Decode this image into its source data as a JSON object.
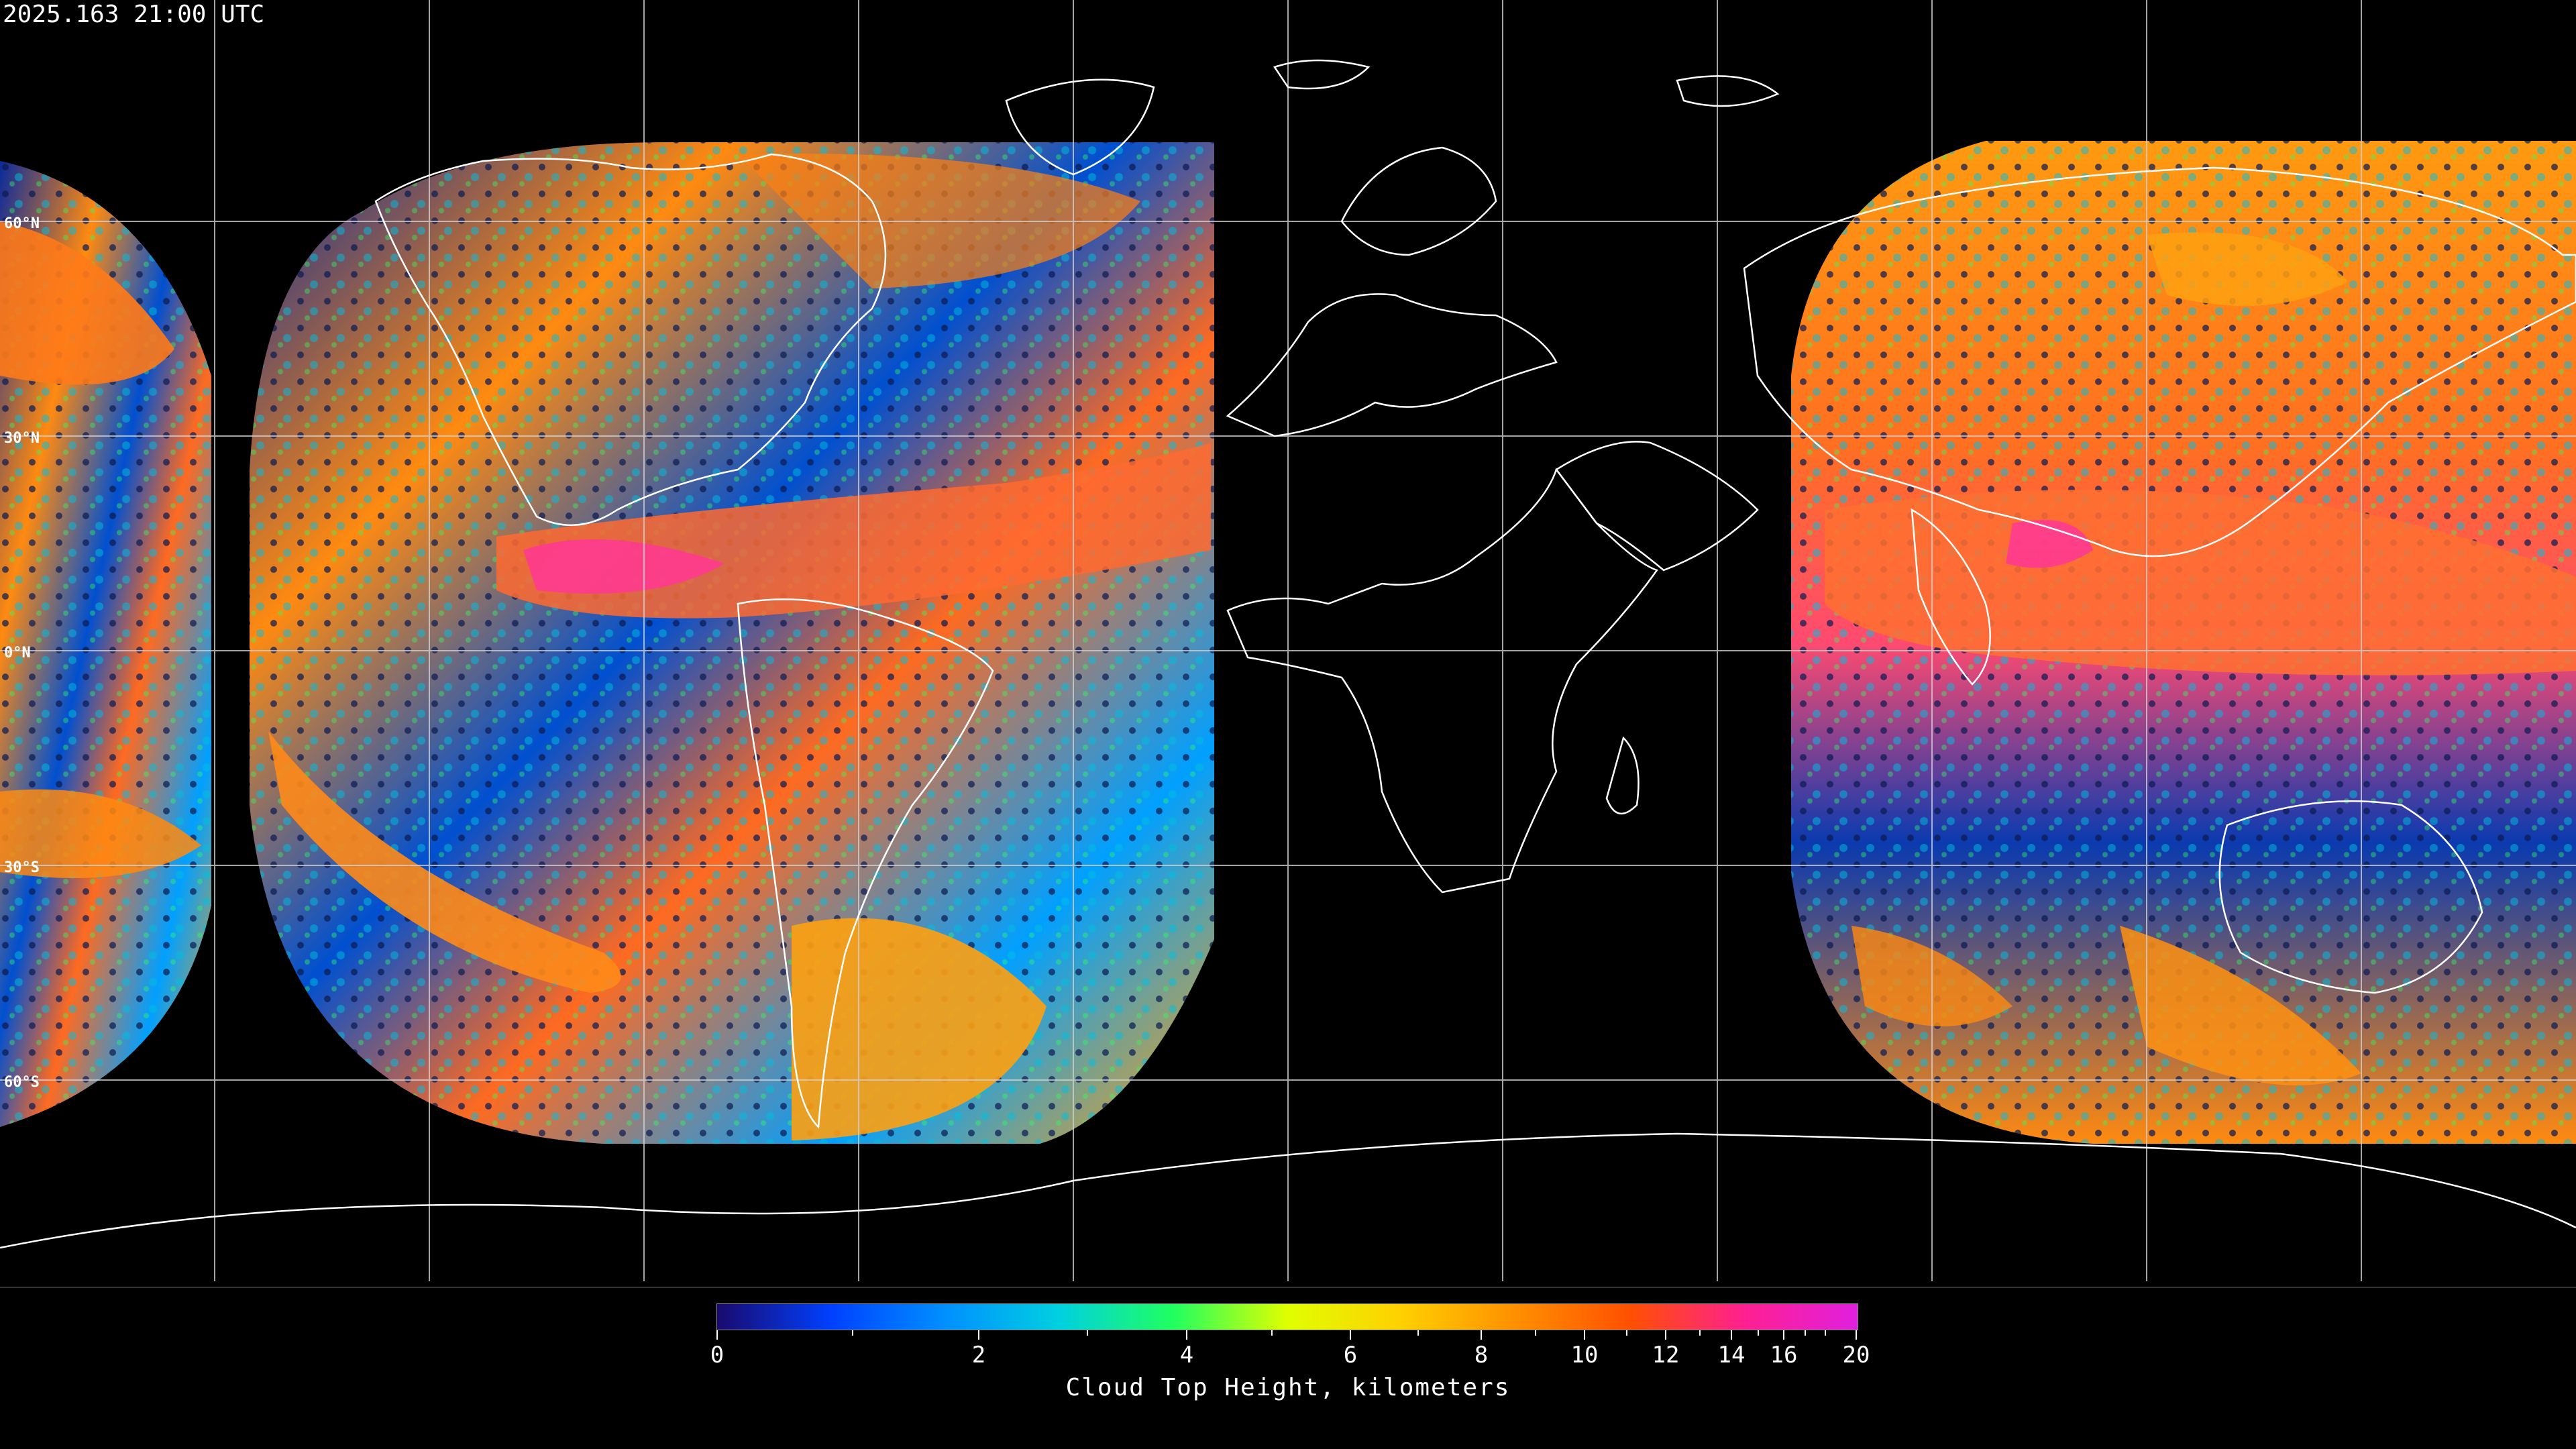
{
  "header": {
    "timestamp": "2025.163 21:00 UTC"
  },
  "map": {
    "projection": "equirectangular",
    "gridlines": "white, every 30 degrees",
    "lat_labels": [
      "60°N",
      "30°N",
      "0°N",
      "30°S",
      "60°S"
    ],
    "coastline_color": "#ffffff",
    "background_color": "#000000"
  },
  "colorbar": {
    "title": "Cloud Top Height, kilometers",
    "labels": [
      "0",
      "2",
      "4",
      "6",
      "8",
      "10",
      "12",
      "14",
      "16",
      "20"
    ],
    "colors": [
      "#1a0a6e",
      "#0040ff",
      "#0090ff",
      "#00d0e0",
      "#20ff60",
      "#e0ff00",
      "#ffd000",
      "#ff9000",
      "#ff5000",
      "#ff2090",
      "#e020e0"
    ]
  }
}
